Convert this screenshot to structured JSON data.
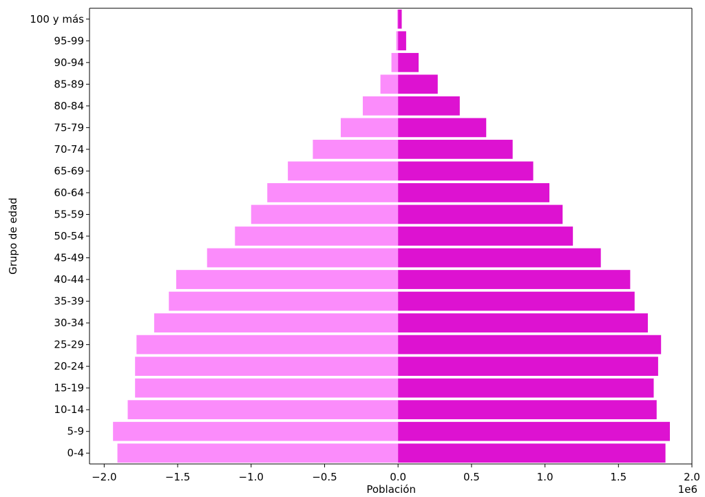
{
  "chart_data": {
    "type": "bar",
    "orientation": "horizontal",
    "layout": "population-pyramid",
    "xlabel": "Población",
    "ylabel": "Grupo de edad",
    "x_offset_text": "1e6",
    "xlim": [
      -2.1,
      2.0
    ],
    "xticks": [
      -2.0,
      -1.5,
      -1.0,
      -0.5,
      0.0,
      0.5,
      1.0,
      1.5,
      2.0
    ],
    "xtick_labels": [
      "−2.0",
      "−1.5",
      "−1.0",
      "−0.5",
      "0.0",
      "0.5",
      "1.0",
      "1.5",
      "2.0"
    ],
    "categories": [
      "0-4",
      "5-9",
      "10-14",
      "15-19",
      "20-24",
      "25-29",
      "30-34",
      "35-39",
      "40-44",
      "45-49",
      "50-54",
      "55-59",
      "60-64",
      "65-69",
      "70-74",
      "75-79",
      "80-84",
      "85-89",
      "90-94",
      "95-99",
      "100 y más"
    ],
    "series": [
      {
        "color": "#fb8cfb",
        "values": [
          -1.91,
          -1.94,
          -1.84,
          -1.79,
          -1.79,
          -1.78,
          -1.66,
          -1.56,
          -1.51,
          -1.3,
          -1.11,
          -1.0,
          -0.89,
          -0.75,
          -0.58,
          -0.39,
          -0.24,
          -0.12,
          -0.045,
          -0.012,
          -0.005
        ]
      },
      {
        "color": "#dd12d1",
        "values": [
          1.82,
          1.85,
          1.76,
          1.74,
          1.77,
          1.79,
          1.7,
          1.61,
          1.58,
          1.38,
          1.19,
          1.12,
          1.03,
          0.92,
          0.78,
          0.6,
          0.42,
          0.27,
          0.14,
          0.055,
          0.025
        ]
      }
    ],
    "grid": false,
    "legend": "none"
  }
}
